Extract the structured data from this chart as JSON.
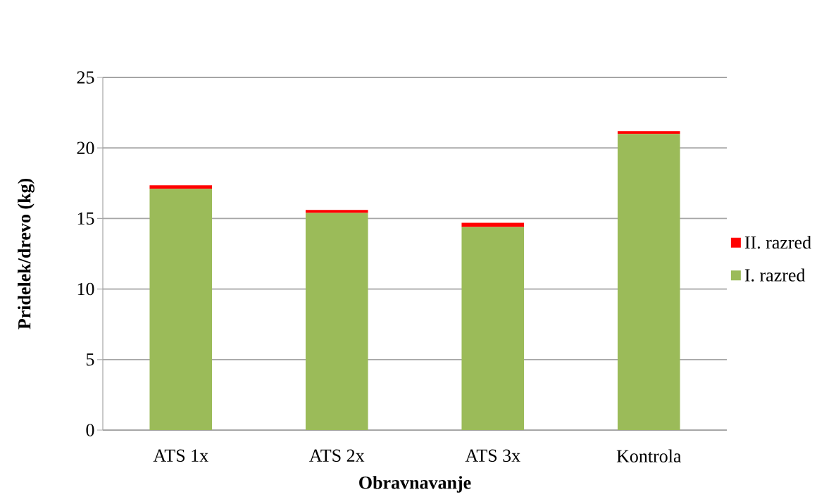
{
  "chart_data": {
    "type": "bar",
    "xlabel": "Obravnavanje",
    "ylabel": "Pridelek/drevo (kg)",
    "categories": [
      "ATS 1x",
      "ATS 2x",
      "ATS 3x",
      "Kontrola"
    ],
    "series": [
      {
        "name": "I. razred",
        "color": "#9bbb59",
        "values": [
          17.1,
          15.4,
          14.4,
          21.0
        ]
      },
      {
        "name": "II. razred",
        "color": "#ff0000",
        "values": [
          0.25,
          0.2,
          0.3,
          0.2
        ]
      }
    ],
    "stacked": true,
    "ylim": [
      0,
      25
    ],
    "yticks": [
      0,
      5,
      10,
      15,
      20,
      25
    ],
    "grid": "y",
    "legend": "right"
  }
}
